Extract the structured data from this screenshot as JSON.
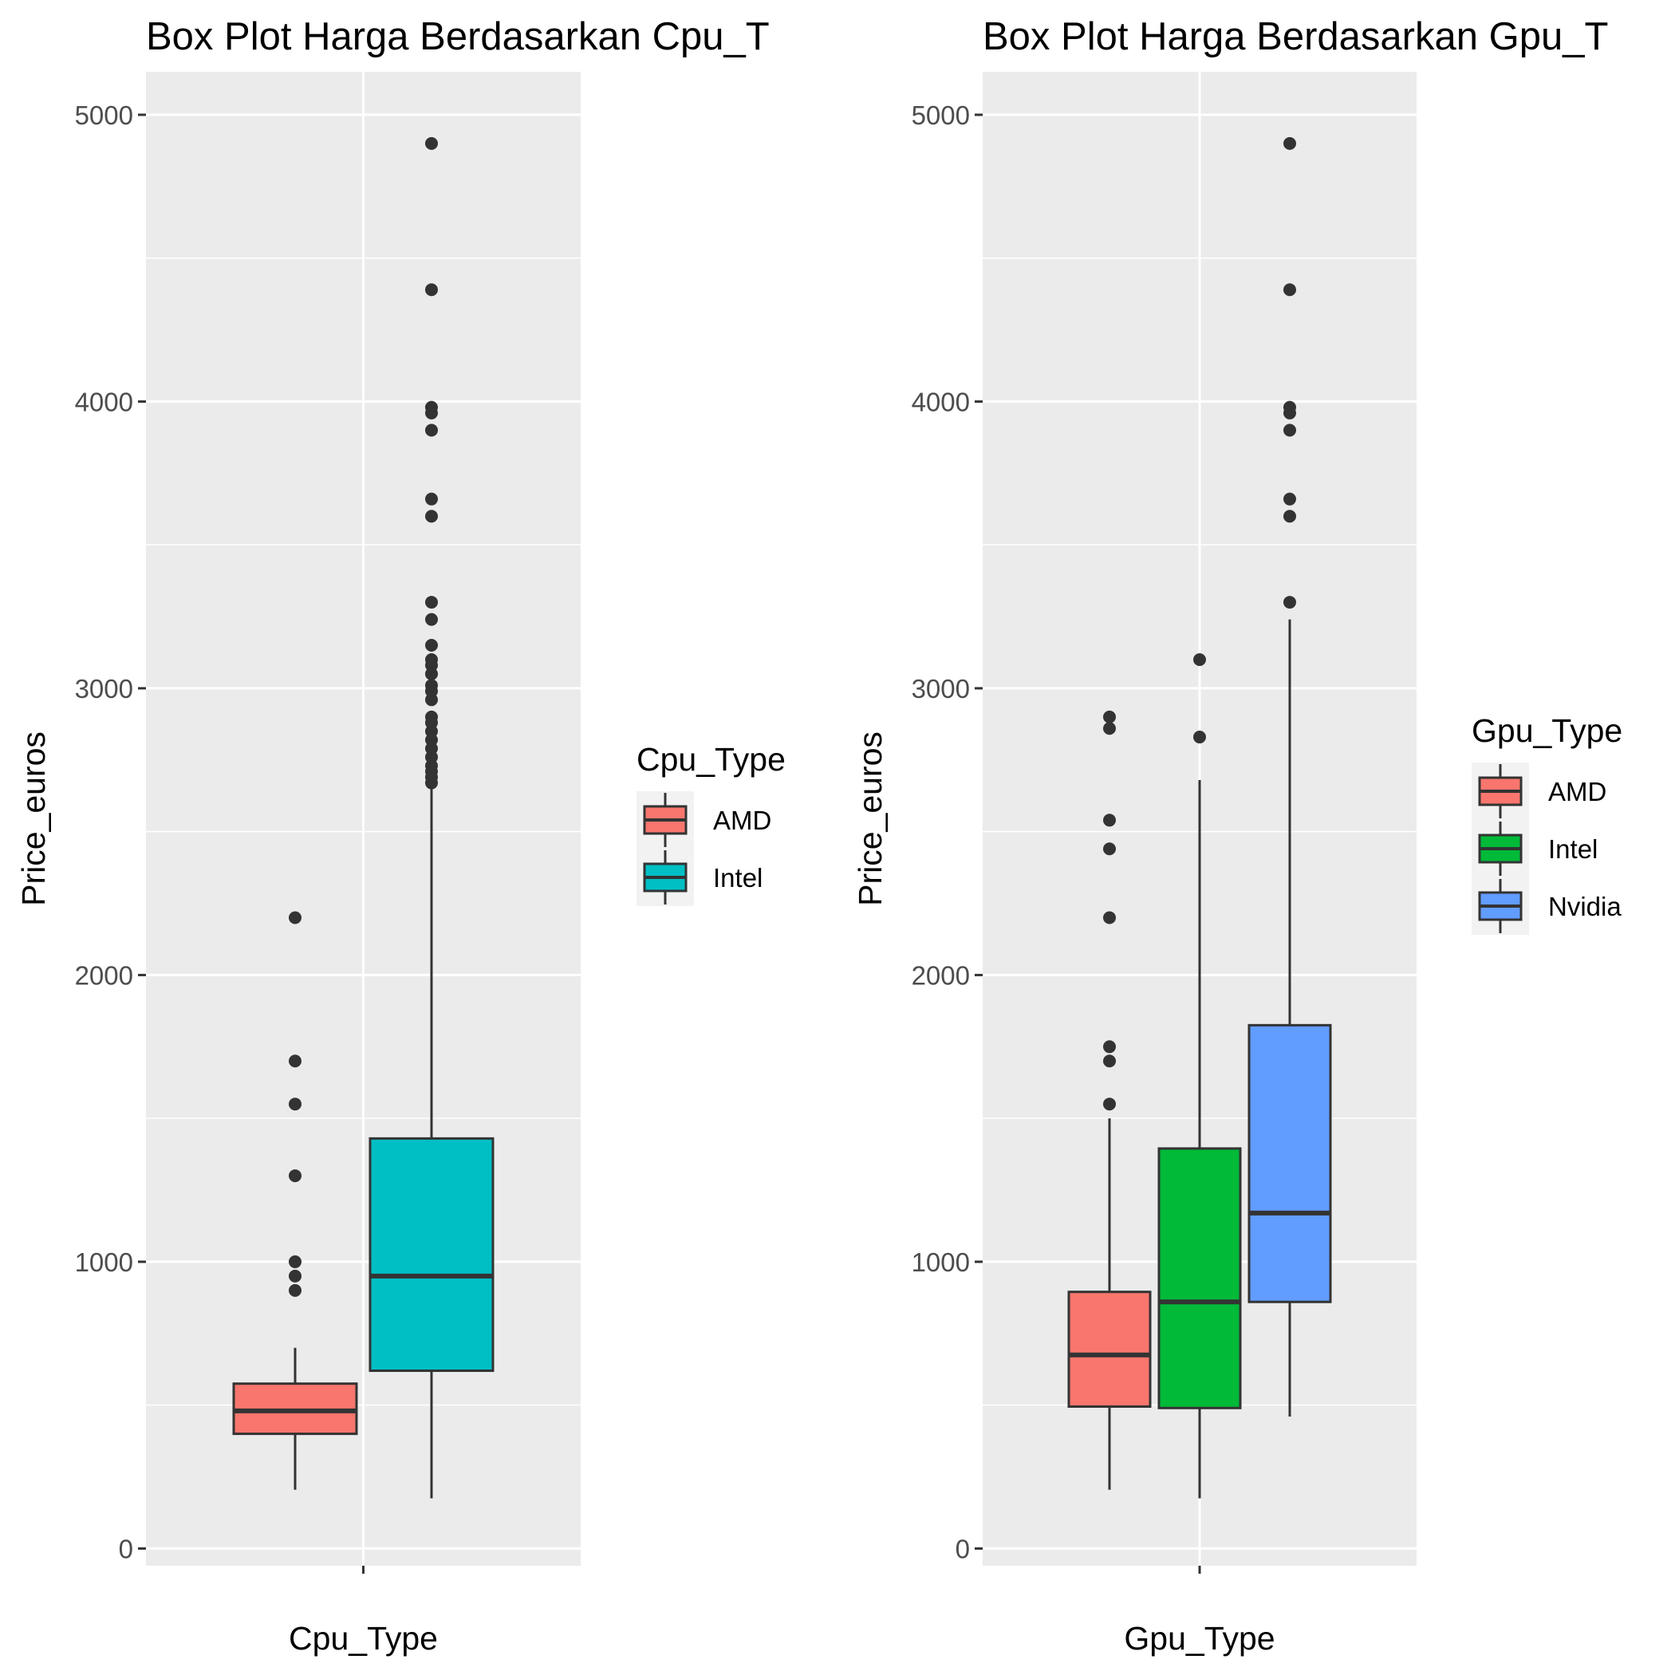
{
  "chart_data": [
    {
      "type": "box",
      "title": "Box Plot Harga Berdasarkan Cpu_T",
      "xlabel": "Cpu_Type",
      "ylabel": "Price_euros",
      "ylim": [
        -60,
        5150
      ],
      "yticks": [
        0,
        1000,
        2000,
        3000,
        4000,
        5000
      ],
      "grid": true,
      "legend": {
        "title": "Cpu_Type",
        "position": "right"
      },
      "series": [
        {
          "name": "AMD",
          "color": "#F8766D",
          "q1": 400,
          "median": 480,
          "q3": 575,
          "whisker_low": 205,
          "whisker_high": 700,
          "outliers": [
            900,
            950,
            1000,
            1300,
            1550,
            1700,
            2200
          ]
        },
        {
          "name": "Intel",
          "color": "#00BFC4",
          "q1": 620,
          "median": 950,
          "q3": 1430,
          "whisker_low": 175,
          "whisker_high": 2650,
          "outliers": [
            2670,
            2690,
            2710,
            2730,
            2760,
            2790,
            2820,
            2850,
            2880,
            2900,
            2960,
            2990,
            3010,
            3050,
            3080,
            3100,
            3150,
            3240,
            3300,
            3600,
            3660,
            3900,
            3960,
            3980,
            4390,
            4900
          ]
        }
      ]
    },
    {
      "type": "box",
      "title": "Box Plot Harga Berdasarkan Gpu_T",
      "xlabel": "Gpu_Type",
      "ylabel": "Price_euros",
      "ylim": [
        -60,
        5150
      ],
      "yticks": [
        0,
        1000,
        2000,
        3000,
        4000,
        5000
      ],
      "grid": true,
      "legend": {
        "title": "Gpu_Type",
        "position": "right"
      },
      "series": [
        {
          "name": "AMD",
          "color": "#F8766D",
          "q1": 495,
          "median": 675,
          "q3": 895,
          "whisker_low": 205,
          "whisker_high": 1500,
          "outliers": [
            1550,
            1700,
            1750,
            2200,
            2440,
            2540,
            2860,
            2900
          ]
        },
        {
          "name": "Intel",
          "color": "#00BA38",
          "q1": 490,
          "median": 860,
          "q3": 1395,
          "whisker_low": 175,
          "whisker_high": 2680,
          "outliers": [
            2830,
            3100
          ]
        },
        {
          "name": "Nvidia",
          "color": "#619CFF",
          "q1": 860,
          "median": 1170,
          "q3": 1825,
          "whisker_low": 460,
          "whisker_high": 3240,
          "outliers": [
            3300,
            3600,
            3660,
            3900,
            3960,
            3980,
            4390,
            4900
          ]
        }
      ]
    }
  ]
}
